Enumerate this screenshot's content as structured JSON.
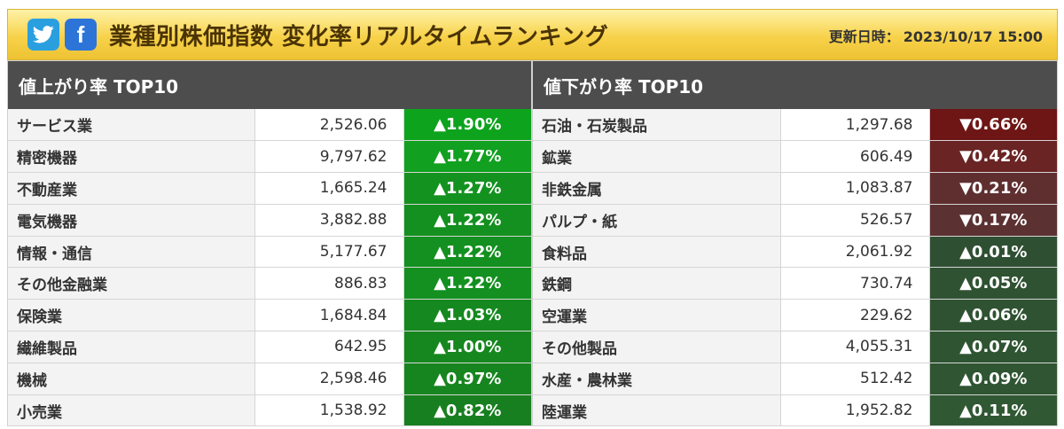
{
  "header": {
    "title": "業種別株価指数 変化率リアルタイムランキング",
    "updated_label": "更新日時：",
    "updated_value": "2023/10/17 15:00",
    "twitter_icon": "twitter-bird-icon",
    "facebook_icon": "facebook-f-icon",
    "facebook_glyph": "f"
  },
  "colors": {
    "up_strong": "#0ea31d",
    "up_mid": "#138e1e",
    "up_weak": "#1a7a1f",
    "up_flat": "#2e5b31",
    "down_strong": "#6e1515",
    "down_mid": "#6a2424",
    "down_weak": "#5e3030",
    "down_flat": "#583434"
  },
  "gainers": {
    "title": "値上がり率 TOP10",
    "rows": [
      {
        "name": "サービス業",
        "price": "2,526.06",
        "change": "▲1.90%",
        "color": "#0ea31d"
      },
      {
        "name": "精密機器",
        "price": "9,797.62",
        "change": "▲1.77%",
        "color": "#11a020"
      },
      {
        "name": "不動産業",
        "price": "1,665.24",
        "change": "▲1.27%",
        "color": "#13921f"
      },
      {
        "name": "電気機器",
        "price": "3,882.88",
        "change": "▲1.22%",
        "color": "#13901f"
      },
      {
        "name": "情報・通信",
        "price": "5,177.67",
        "change": "▲1.22%",
        "color": "#13901f"
      },
      {
        "name": "その他金融業",
        "price": "886.83",
        "change": "▲1.22%",
        "color": "#13901f"
      },
      {
        "name": "保険業",
        "price": "1,684.84",
        "change": "▲1.03%",
        "color": "#15891f"
      },
      {
        "name": "繊維製品",
        "price": "642.95",
        "change": "▲1.00%",
        "color": "#16871f"
      },
      {
        "name": "機械",
        "price": "2,598.46",
        "change": "▲0.97%",
        "color": "#17851f"
      },
      {
        "name": "小売業",
        "price": "1,538.92",
        "change": "▲0.82%",
        "color": "#187f20"
      }
    ]
  },
  "losers": {
    "title": "値下がり率 TOP10",
    "rows": [
      {
        "name": "石油・石炭製品",
        "price": "1,297.68",
        "change": "▼0.66%",
        "color": "#6e1515"
      },
      {
        "name": "鉱業",
        "price": "606.49",
        "change": "▼0.42%",
        "color": "#6a2424"
      },
      {
        "name": "非鉄金属",
        "price": "1,083.87",
        "change": "▼0.21%",
        "color": "#5f2f2f"
      },
      {
        "name": "パルプ・紙",
        "price": "526.57",
        "change": "▼0.17%",
        "color": "#5c3131"
      },
      {
        "name": "食料品",
        "price": "2,061.92",
        "change": "▲0.01%",
        "color": "#2f4f33"
      },
      {
        "name": "鉄鋼",
        "price": "730.74",
        "change": "▲0.05%",
        "color": "#2f5232"
      },
      {
        "name": "空運業",
        "price": "229.62",
        "change": "▲0.06%",
        "color": "#2f5332"
      },
      {
        "name": "その他製品",
        "price": "4,055.31",
        "change": "▲0.07%",
        "color": "#2f5432"
      },
      {
        "name": "水産・農林業",
        "price": "512.42",
        "change": "▲0.09%",
        "color": "#2f5532"
      },
      {
        "name": "陸運業",
        "price": "1,952.82",
        "change": "▲0.11%",
        "color": "#305833"
      }
    ]
  }
}
